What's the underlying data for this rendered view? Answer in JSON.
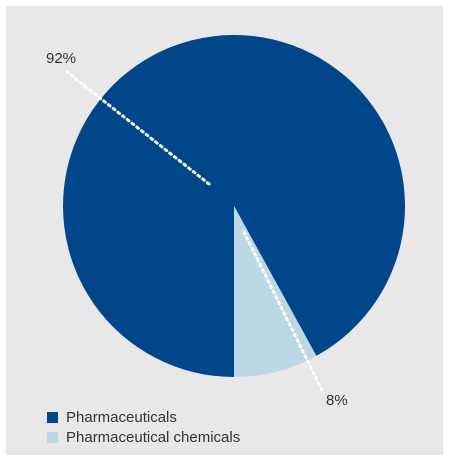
{
  "chart_data": {
    "type": "pie",
    "slices": [
      {
        "name": "Pharmaceuticals",
        "value": 92,
        "label": "92%",
        "color": "#00468b"
      },
      {
        "name": "Pharmaceutical chemicals",
        "value": 8,
        "label": "8%",
        "color": "#bcd8e4"
      }
    ],
    "legend": {
      "placement": "bottom-left",
      "items": [
        "Pharmaceuticals",
        "Pharmaceutical chemicals"
      ]
    },
    "background_color": "#e8e8e8"
  }
}
